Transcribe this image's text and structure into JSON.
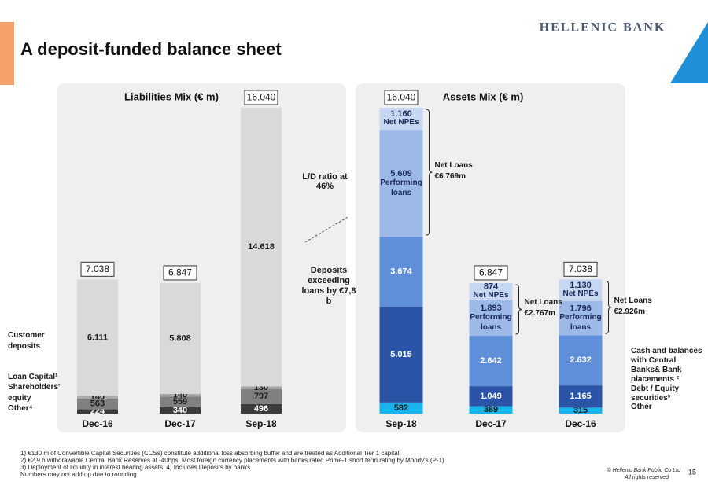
{
  "title": "A deposit-funded balance sheet",
  "logo": "HELLENIC BANK",
  "chart_data": [
    {
      "type": "bar",
      "stacked": true,
      "title": "Liabilities Mix (€ m)",
      "categories": [
        "Dec-16",
        "Dec-17",
        "Sep-18"
      ],
      "series": [
        {
          "name": "Other⁴",
          "color": "#3b3b3b",
          "label_color": "#ffffff",
          "values": [
            224,
            340,
            496
          ]
        },
        {
          "name": "Shareholders' equity",
          "color": "#808080",
          "label_color": "#1a1a1a",
          "values": [
            563,
            559,
            797
          ]
        },
        {
          "name": "Loan Capital¹",
          "color": "#a8a8a8",
          "label_color": "#1a1a1a",
          "values": [
            140,
            140,
            130
          ]
        },
        {
          "name": "Customer deposits",
          "color": "#d9d9d9",
          "label_color": "#1a1a1a",
          "values": [
            6111,
            5808,
            14618
          ],
          "value_labels": [
            "6.111",
            "5.808",
            "14.618"
          ]
        }
      ],
      "totals": {
        "values": [
          7038,
          6847,
          16040
        ],
        "value_labels": [
          "7.038",
          "6.847",
          "16.040"
        ]
      }
    },
    {
      "type": "bar",
      "stacked": true,
      "title": "Assets Mix (€ m)",
      "categories": [
        "Sep-18",
        "Dec-17",
        "Dec-16"
      ],
      "series": [
        {
          "name": "Other",
          "color": "#19b2ea",
          "label_color": "#1a1a1a",
          "values": [
            582,
            389,
            315
          ]
        },
        {
          "name": "Debt / Equity securities³",
          "color": "#2b53a6",
          "label_color": "#ffffff",
          "values": [
            5015,
            1049,
            1165
          ],
          "value_labels": [
            "5.015",
            "1.049",
            "1.165"
          ]
        },
        {
          "name": "Cash and balances with Central Banks& Bank placements ²",
          "color": "#5f8fd9",
          "label_color": "#ffffff",
          "values": [
            3674,
            2642,
            2632
          ],
          "value_labels": [
            "3.674",
            "2.642",
            "2.632"
          ]
        },
        {
          "name": "Performing loans",
          "color": "#9db9e7",
          "label_color": "#1a2a5a",
          "show_name": true,
          "values": [
            5609,
            1893,
            1796
          ],
          "value_labels": [
            "5.609",
            "1.893",
            "1.796"
          ]
        },
        {
          "name": "Net NPEs",
          "color": "#c7d7f2",
          "label_color": "#1a2a5a",
          "show_name": true,
          "values": [
            1160,
            874,
            1130
          ],
          "value_labels": [
            "1.160",
            "874",
            "1.130"
          ]
        }
      ],
      "totals": {
        "values": [
          16040,
          6847,
          7038
        ],
        "value_labels": [
          "16.040",
          "6.847",
          "7.038"
        ]
      },
      "net_loans": {
        "label": "Net Loans",
        "values": [
          6769,
          2767,
          2926
        ],
        "value_labels": [
          "€6.769m",
          "€2.767m",
          "€2.926m"
        ]
      }
    }
  ],
  "annotations": [
    "L/D ratio at 46%",
    "Deposits exceeding loans by €7,8 b"
  ],
  "footnotes": [
    "1) €130 m of Convertible Capital Securities (CCSs) constitute additional loss absorbing buffer and are treated as Additional Tier 1 capital",
    "2) €2,9 b withdrawable Central Bank Reserves at -40bps. Most foreign currency placements with banks rated Prime-1 short term rating by Moody's (P-1)",
    "3) Deployment of liquidity in interest bearing assets.  4) Includes Deposits by banks",
    "Numbers may not add up due to rounding"
  ],
  "copyright": [
    "© Hellenic Bank Public Co Ltd",
    "All rights reserved"
  ],
  "page_number": "15"
}
